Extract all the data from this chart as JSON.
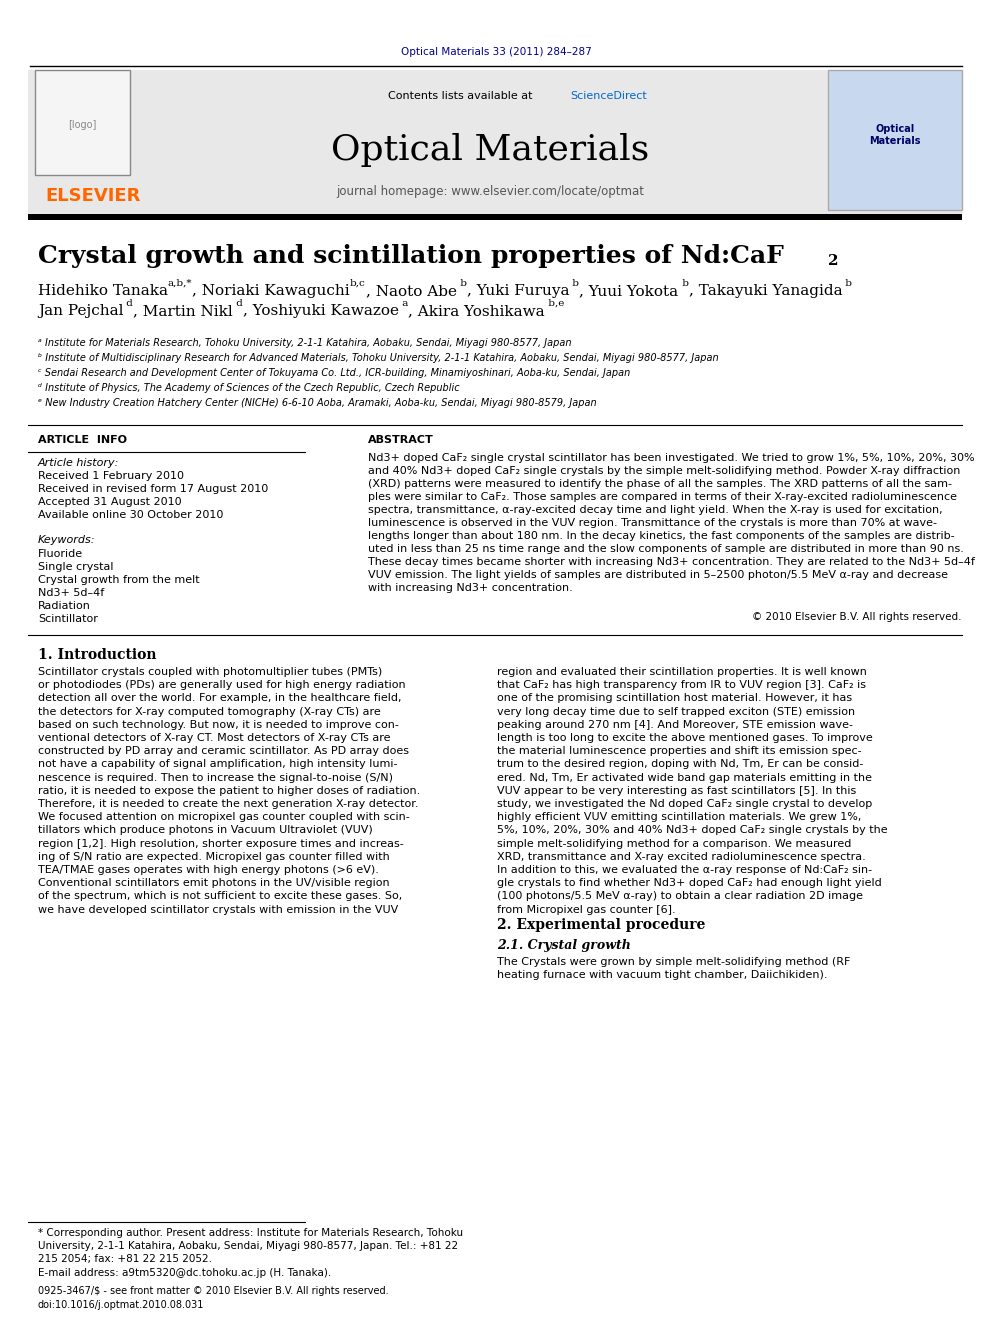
{
  "page_width": 9.92,
  "page_height": 13.23,
  "background_color": "#ffffff",
  "journal_ref": "Optical Materials 33 (2011) 284–287",
  "journal_ref_color": "#00008B",
  "header_bg_color": "#e8e8e8",
  "journal_title": "Optical Materials",
  "journal_homepage": "journal homepage: www.elsevier.com/locate/optmat",
  "elsevier_color": "#FF6600",
  "elsevier_text": "ELSEVIER",
  "contents_text": "Contents lists available at ",
  "sciencedirect_text": "ScienceDirect",
  "sciencedirect_color": "#0066CC",
  "article_title": "Crystal growth and scintillation properties of Nd:CaF",
  "article_title_sub": "2",
  "aff_a": "ᵃ Institute for Materials Research, Tohoku University, 2-1-1 Katahira, Aobaku, Sendai, Miyagi 980-8577, Japan",
  "aff_b": "ᵇ Institute of Multidisciplinary Research for Advanced Materials, Tohoku University, 2-1-1 Katahira, Aobaku, Sendai, Miyagi 980-8577, Japan",
  "aff_c": "ᶜ Sendai Research and Development Center of Tokuyama Co. Ltd., ICR-building, Minamiyoshinari, Aoba-ku, Sendai, Japan",
  "aff_d": "ᵈ Institute of Physics, The Academy of Sciences of the Czech Republic, Czech Republic",
  "aff_e": "ᵉ New Industry Creation Hatchery Center (NICHe) 6-6-10 Aoba, Aramaki, Aoba-ku, Sendai, Miyagi 980-8579, Japan",
  "article_info_title": "ARTICLE  INFO",
  "abstract_title": "ABSTRACT",
  "article_history": "Article history:",
  "received": "Received 1 February 2010",
  "revised": "Received in revised form 17 August 2010",
  "accepted": "Accepted 31 August 2010",
  "available": "Available online 30 October 2010",
  "keywords_title": "Keywords:",
  "keywords": [
    "Fluoride",
    "Single crystal",
    "Crystal growth from the melt",
    "Nd3+ 5d–4f",
    "Radiation",
    "Scintillator"
  ],
  "copyright": "© 2010 Elsevier B.V. All rights reserved.",
  "section1_title": "1. Introduction",
  "section2_title": "2. Experimental procedure",
  "section21_title": "2.1. Crystal growth",
  "email_text": "E-mail address: a9tm5320@dc.tohoku.ac.jp (H. Tanaka).",
  "issn_text": "0925-3467/$ - see front matter © 2010 Elsevier B.V. All rights reserved.",
  "doi_text": "doi:10.1016/j.optmat.2010.08.031"
}
